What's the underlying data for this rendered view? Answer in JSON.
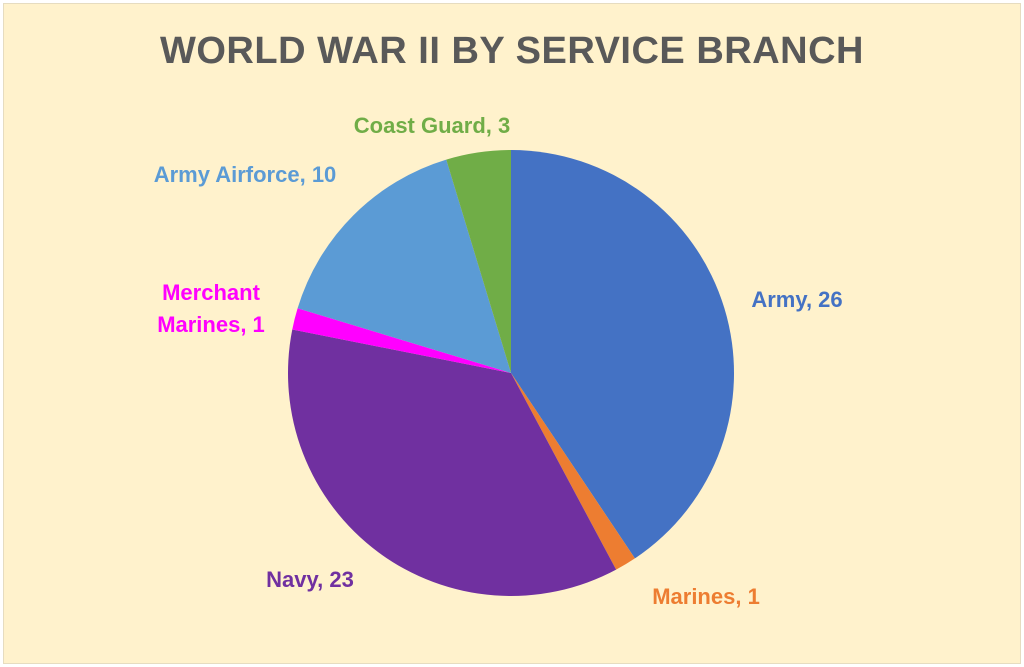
{
  "chart_data": {
    "type": "pie",
    "title": "WORLD WAR II BY SERVICE BRANCH",
    "labels": [
      "Army",
      "Marines",
      "Navy",
      "Merchant Marines",
      "Army Airforce",
      "Coast Guard"
    ],
    "values": [
      26,
      1,
      23,
      1,
      10,
      3
    ],
    "data_labels": [
      "Army, 26",
      "Marines, 1",
      "Navy, 23",
      "Merchant Marines, 1",
      "Army Airforce, 10",
      "Coast Guard, 3"
    ],
    "colors": [
      "#4472C4",
      "#ED7D31",
      "#7030A0",
      "#FF00FF",
      "#5B9BD5",
      "#70AD47"
    ],
    "start": "top",
    "direction": "clockwise",
    "legend": "none"
  }
}
